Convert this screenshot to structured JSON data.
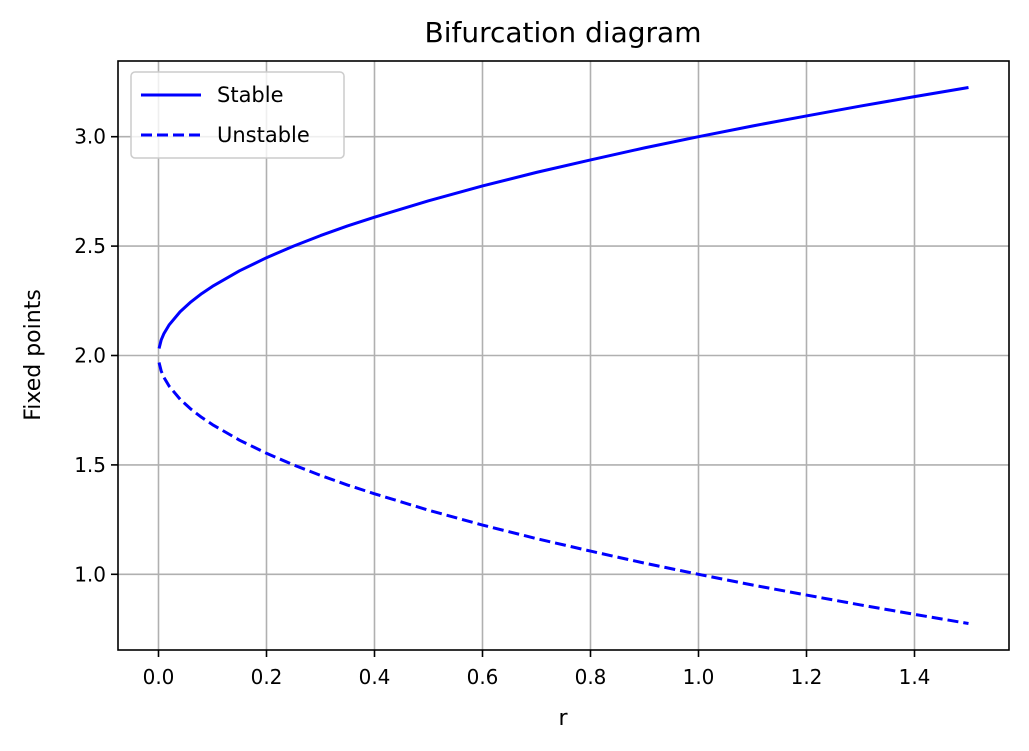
{
  "chart_data": {
    "type": "line",
    "title": "Bifurcation diagram",
    "xlabel": "r",
    "ylabel": "Fixed points",
    "xlim": [
      -0.075,
      1.575
    ],
    "ylim": [
      0.654,
      3.346
    ],
    "xticks": [
      0.0,
      0.2,
      0.4,
      0.6,
      0.8,
      1.0,
      1.2,
      1.4
    ],
    "xtick_labels": [
      "0.0",
      "0.2",
      "0.4",
      "0.6",
      "0.8",
      "1.0",
      "1.2",
      "1.4"
    ],
    "yticks": [
      1.0,
      1.5,
      2.0,
      2.5,
      3.0
    ],
    "ytick_labels": [
      "1.0",
      "1.5",
      "2.0",
      "2.5",
      "3.0"
    ],
    "grid": true,
    "legend_position": "top-left",
    "series": [
      {
        "name": "Stable",
        "color": "#0000ff",
        "style": "solid",
        "x": [
          0.001,
          0.005,
          0.01,
          0.02,
          0.04,
          0.06,
          0.08,
          0.1,
          0.15,
          0.2,
          0.25,
          0.3,
          0.35,
          0.4,
          0.5,
          0.6,
          0.7,
          0.8,
          0.9,
          1.0,
          1.1,
          1.2,
          1.3,
          1.4,
          1.5
        ],
        "y": [
          2.032,
          2.071,
          2.1,
          2.141,
          2.2,
          2.245,
          2.283,
          2.316,
          2.387,
          2.447,
          2.5,
          2.548,
          2.592,
          2.632,
          2.707,
          2.775,
          2.837,
          2.894,
          2.949,
          3.0,
          3.049,
          3.095,
          3.14,
          3.183,
          3.225
        ]
      },
      {
        "name": "Unstable",
        "color": "#0000ff",
        "style": "dashed",
        "x": [
          0.001,
          0.005,
          0.01,
          0.02,
          0.04,
          0.06,
          0.08,
          0.1,
          0.15,
          0.2,
          0.25,
          0.3,
          0.35,
          0.4,
          0.5,
          0.6,
          0.7,
          0.8,
          0.9,
          1.0,
          1.1,
          1.2,
          1.3,
          1.4,
          1.5
        ],
        "y": [
          1.968,
          1.929,
          1.9,
          1.859,
          1.8,
          1.755,
          1.717,
          1.684,
          1.613,
          1.553,
          1.5,
          1.452,
          1.408,
          1.368,
          1.293,
          1.225,
          1.163,
          1.106,
          1.051,
          1.0,
          0.951,
          0.905,
          0.86,
          0.817,
          0.775
        ]
      }
    ]
  }
}
